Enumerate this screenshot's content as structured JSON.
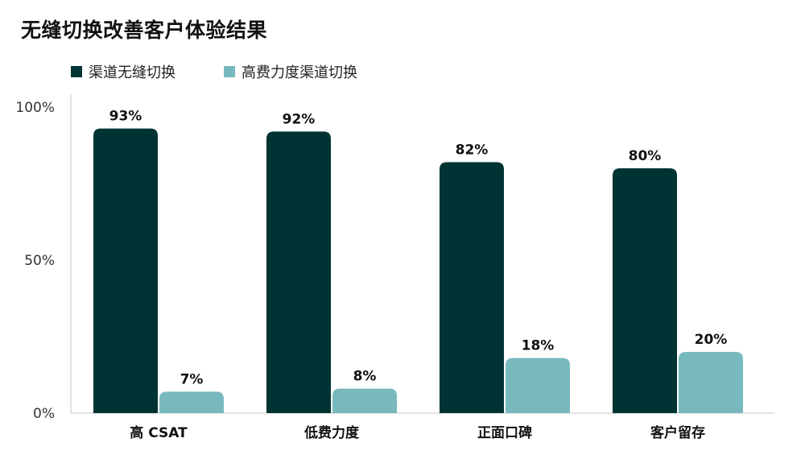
{
  "chart_data": {
    "type": "bar",
    "title": "无缝切换改善客户体验结果",
    "categories": [
      "高 CSAT",
      "低费力度",
      "正面口碑",
      "客户留存"
    ],
    "series": [
      {
        "name": "渠道无缝切换",
        "values": [
          93,
          92,
          82,
          80
        ],
        "labels": [
          "93%",
          "92%",
          "82%",
          "80%"
        ],
        "color": "#003333"
      },
      {
        "name": "高费力度渠道切换",
        "values": [
          7,
          8,
          18,
          20
        ],
        "labels": [
          "7%",
          "8%",
          "18%",
          "20%"
        ],
        "color": "#78B9BE"
      }
    ],
    "ylim": [
      0,
      100
    ],
    "yticks": [
      {
        "value": 0,
        "label": "0%"
      },
      {
        "value": 50,
        "label": "50%"
      },
      {
        "value": 100,
        "label": "100%"
      }
    ],
    "grid": false,
    "legend_position": "top-left",
    "axis_color": "#d9d9d9"
  }
}
